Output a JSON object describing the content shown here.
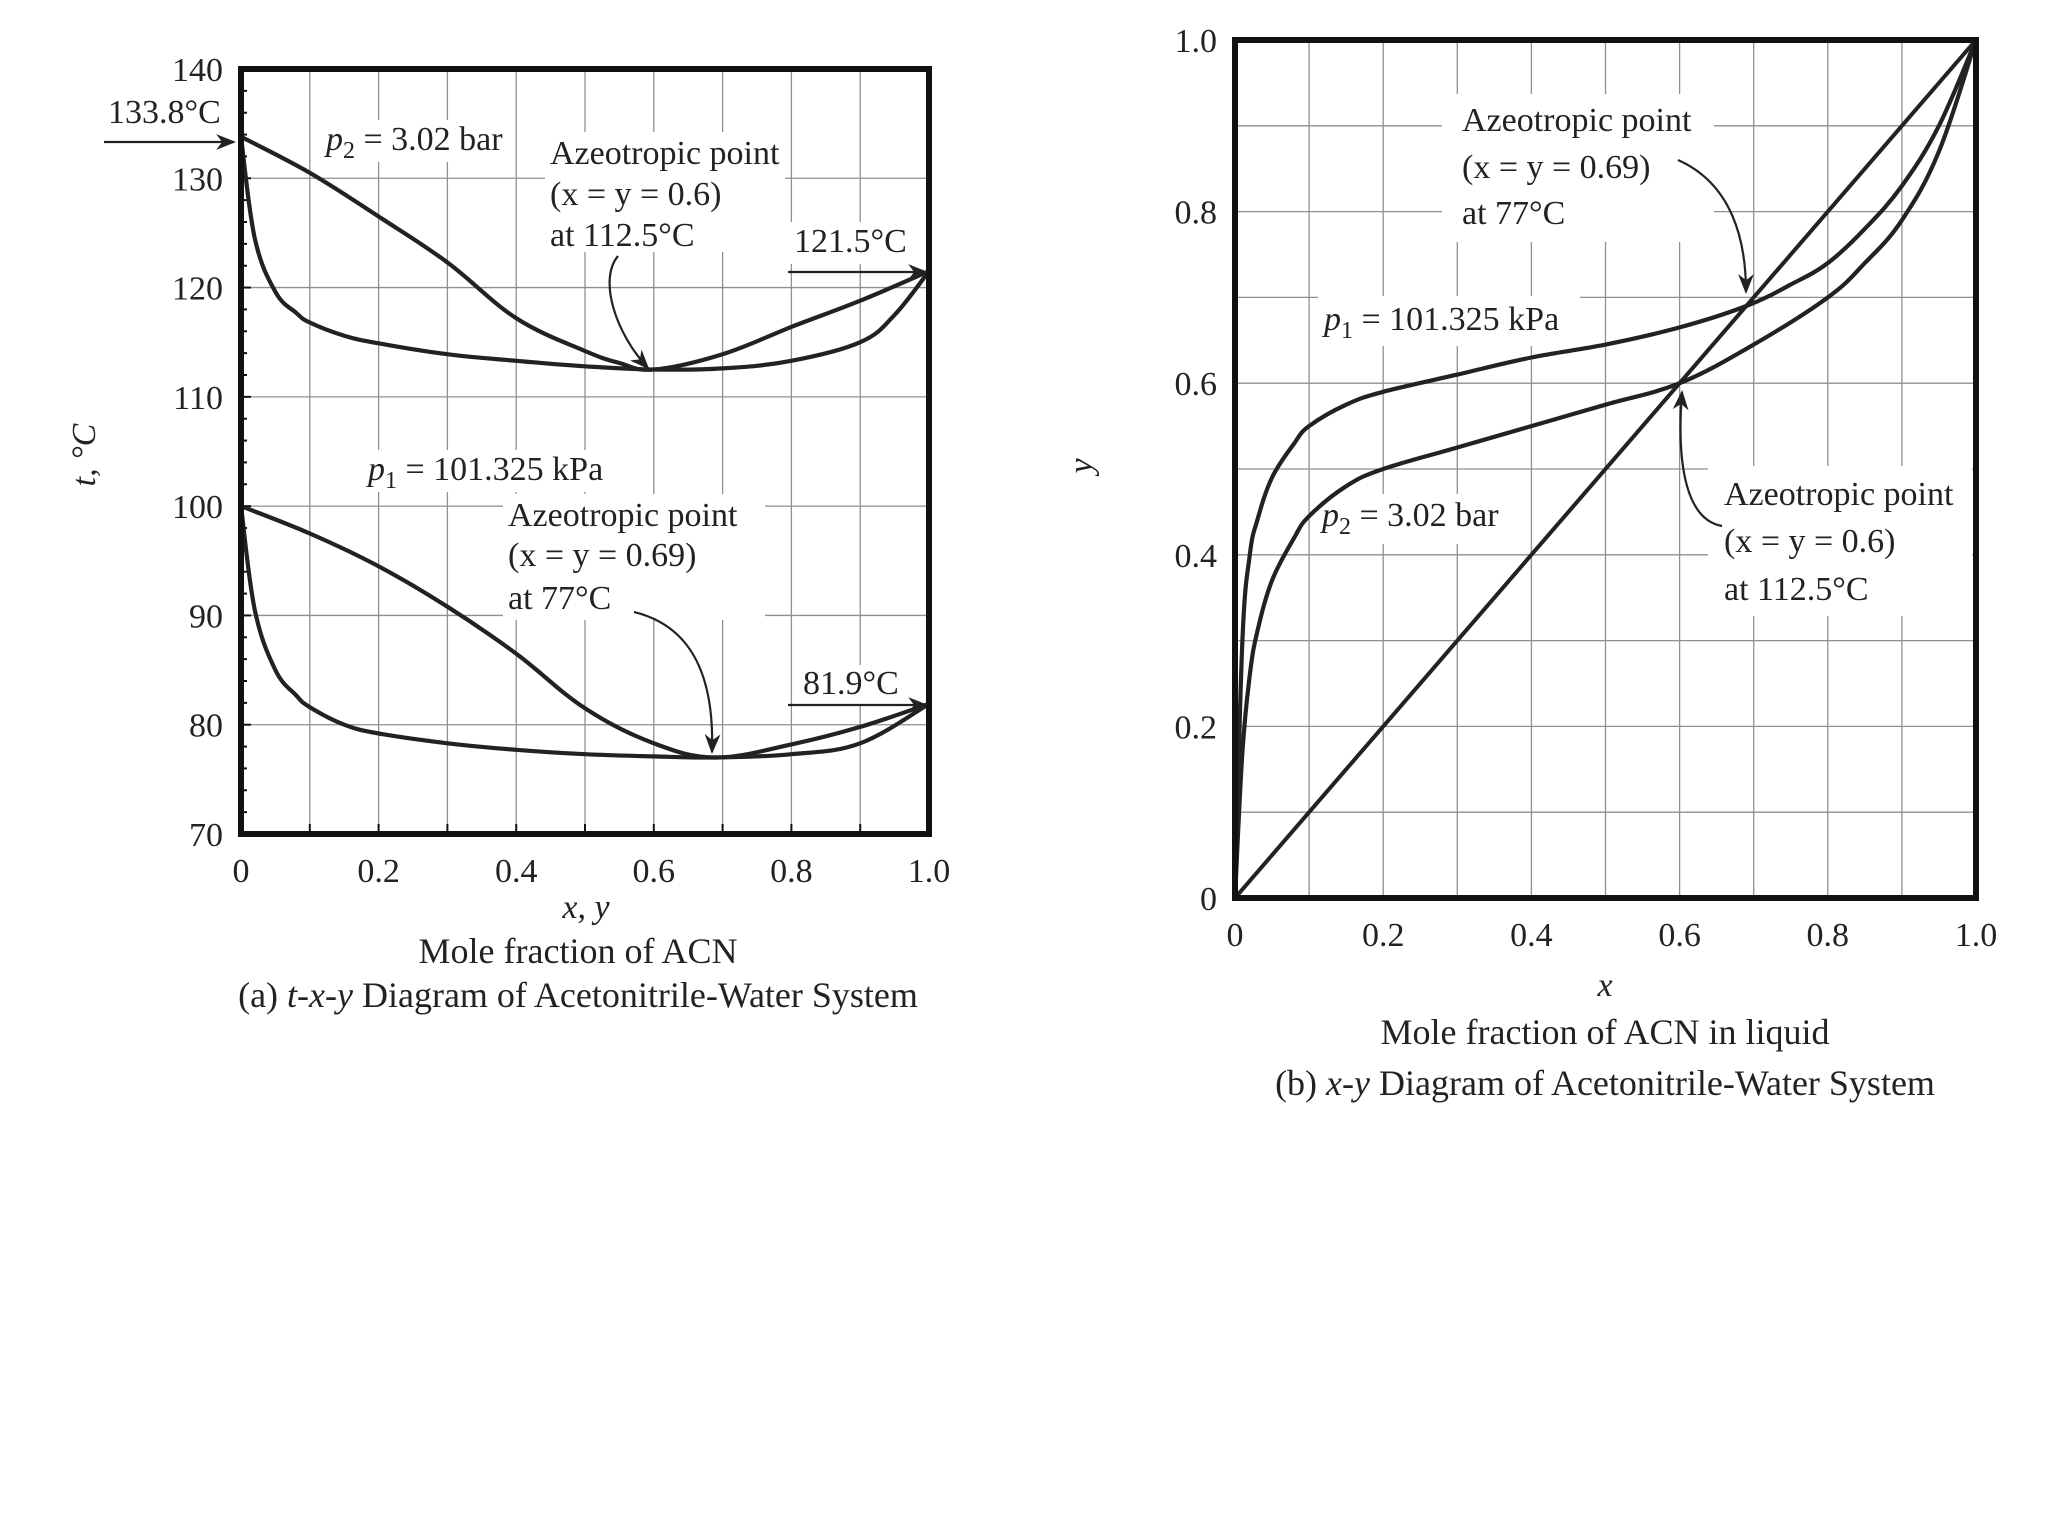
{
  "chart_data": [
    {
      "type": "line",
      "panel": "a",
      "caption_prefix": "(a) ",
      "caption_italic": "t-x-y",
      "caption_suffix": " Diagram of Acetonitrile-Water System",
      "xlabel_symbol": "x, y",
      "xlabel": "Mole fraction of ACN",
      "ylabel": "t, °C",
      "xlim": [
        0,
        1.0
      ],
      "ylim": [
        70,
        140
      ],
      "x_tick_labels": [
        "0",
        "0.2",
        "0.4",
        "0.6",
        "0.8",
        "1.0"
      ],
      "y_tick_labels": [
        "70",
        "80",
        "90",
        "100",
        "110",
        "120",
        "130",
        "140"
      ],
      "grid": true,
      "series": [
        {
          "name": "p2 = 3.02 bar dew",
          "x": [
            0,
            0.1,
            0.2,
            0.3,
            0.4,
            0.5,
            0.55,
            0.6,
            0.7,
            0.8,
            0.9,
            1.0
          ],
          "y": [
            133.8,
            130.5,
            126.5,
            122.3,
            117.2,
            114.2,
            113.1,
            112.5,
            113.9,
            116.4,
            118.8,
            121.5
          ]
        },
        {
          "name": "p2 = 3.02 bar bubble",
          "x": [
            0,
            0.02,
            0.05,
            0.08,
            0.1,
            0.15,
            0.2,
            0.3,
            0.4,
            0.5,
            0.6,
            0.7,
            0.8,
            0.9,
            0.95,
            1.0
          ],
          "y": [
            133.8,
            124.5,
            119.6,
            117.7,
            116.8,
            115.6,
            114.9,
            113.9,
            113.3,
            112.8,
            112.5,
            112.6,
            113.3,
            115.0,
            117.5,
            121.5
          ]
        },
        {
          "name": "p1 = 101.325 kPa dew",
          "x": [
            0,
            0.1,
            0.2,
            0.3,
            0.4,
            0.5,
            0.6,
            0.69,
            0.8,
            0.9,
            1.0
          ],
          "y": [
            100,
            97.5,
            94.5,
            90.8,
            86.5,
            81.5,
            78.3,
            77.0,
            78.2,
            79.8,
            81.9
          ]
        },
        {
          "name": "p1 = 101.325 kPa bubble",
          "x": [
            0,
            0.02,
            0.05,
            0.08,
            0.1,
            0.15,
            0.2,
            0.3,
            0.4,
            0.5,
            0.6,
            0.69,
            0.8,
            0.9,
            1.0
          ],
          "y": [
            100,
            90.5,
            85.0,
            82.7,
            81.6,
            80.0,
            79.2,
            78.3,
            77.7,
            77.3,
            77.1,
            77.0,
            77.3,
            78.3,
            81.9
          ]
        }
      ],
      "annotations": {
        "t_left": "133.8°C",
        "p2_sym": "p",
        "p2_sub": "2",
        "p2_rest": " = 3.02 bar",
        "az_title": "Azeotropic point",
        "az_high_1": "(x = y = 0.6)",
        "az_high_2": "at 112.5°C",
        "t_right_high": "121.5°C",
        "p1_sym": "p",
        "p1_sub": "1",
        "p1_rest": " = 101.325 kPa",
        "az_low_1": "(x = y = 0.69)",
        "az_low_2": "at 77°C",
        "t_right_low": "81.9°C"
      }
    },
    {
      "type": "line",
      "panel": "b",
      "caption_prefix": "(b) ",
      "caption_italic": "x-y",
      "caption_suffix": " Diagram of Acetonitrile-Water System",
      "xlabel_symbol": "x",
      "xlabel": "Mole fraction of ACN in liquid",
      "ylabel": "y",
      "xlim": [
        0,
        1.0
      ],
      "ylim": [
        0,
        1.0
      ],
      "x_tick_labels": [
        "0",
        "0.2",
        "0.4",
        "0.6",
        "0.8",
        "1.0"
      ],
      "y_tick_labels": [
        "0",
        "0.2",
        "0.4",
        "0.6",
        "0.8",
        "1.0"
      ],
      "grid": true,
      "series": [
        {
          "name": "diagonal",
          "x": [
            0,
            1
          ],
          "y": [
            0,
            1
          ]
        },
        {
          "name": "p1 = 101.325 kPa",
          "x": [
            0,
            0.01,
            0.02,
            0.03,
            0.05,
            0.08,
            0.1,
            0.15,
            0.2,
            0.3,
            0.4,
            0.5,
            0.6,
            0.69,
            0.75,
            0.8,
            0.85,
            0.9,
            0.95,
            1.0
          ],
          "y": [
            0,
            0.3,
            0.4,
            0.44,
            0.49,
            0.53,
            0.55,
            0.575,
            0.59,
            0.61,
            0.63,
            0.645,
            0.665,
            0.69,
            0.715,
            0.74,
            0.78,
            0.83,
            0.9,
            1.0
          ]
        },
        {
          "name": "p2 = 3.02 bar",
          "x": [
            0,
            0.01,
            0.02,
            0.03,
            0.05,
            0.08,
            0.1,
            0.15,
            0.2,
            0.3,
            0.4,
            0.5,
            0.6,
            0.7,
            0.8,
            0.85,
            0.9,
            0.95,
            1.0
          ],
          "y": [
            0,
            0.17,
            0.26,
            0.31,
            0.37,
            0.42,
            0.445,
            0.48,
            0.5,
            0.525,
            0.55,
            0.575,
            0.6,
            0.645,
            0.7,
            0.74,
            0.79,
            0.87,
            1.0
          ]
        }
      ],
      "annotations": {
        "az_title": "Azeotropic point",
        "az_low_1": "(x = y = 0.69)",
        "az_low_2": "at 77°C",
        "p1_sym": "p",
        "p1_sub": "1",
        "p1_rest": " = 101.325 kPa",
        "p2_sym": "p",
        "p2_sub": "2",
        "p2_rest": " = 3.02 bar",
        "az_high_1": "(x = y = 0.6)",
        "az_high_2": "at 112.5°C"
      }
    }
  ]
}
